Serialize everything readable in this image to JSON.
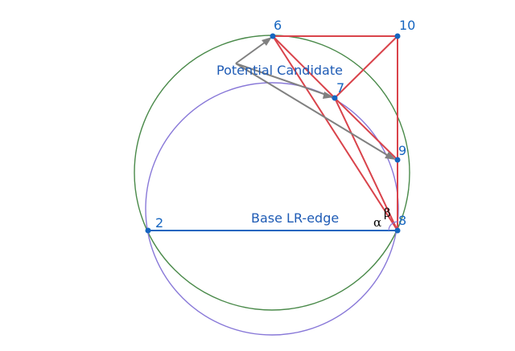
{
  "colors": {
    "point_fill": "#1565c0",
    "point_label": "#1565c0",
    "text_label": "#1e5bb5",
    "base_edge": "#1565c0",
    "red_edges": "#d9434b",
    "circle_green": "#4a8a4a",
    "circle_purple": "#8878d8",
    "arrow": "#808080",
    "angle_text": "#000000"
  },
  "points": [
    {
      "id": "2",
      "label": "2"
    },
    {
      "id": "6",
      "label": "6"
    },
    {
      "id": "7",
      "label": "7"
    },
    {
      "id": "8",
      "label": "8"
    },
    {
      "id": "9",
      "label": "9"
    },
    {
      "id": "10",
      "label": "10"
    }
  ],
  "labels": {
    "potential_candidate": "Potential Candidate",
    "base_edge": "Base LR-edge",
    "alpha": "α",
    "beta": "β"
  }
}
